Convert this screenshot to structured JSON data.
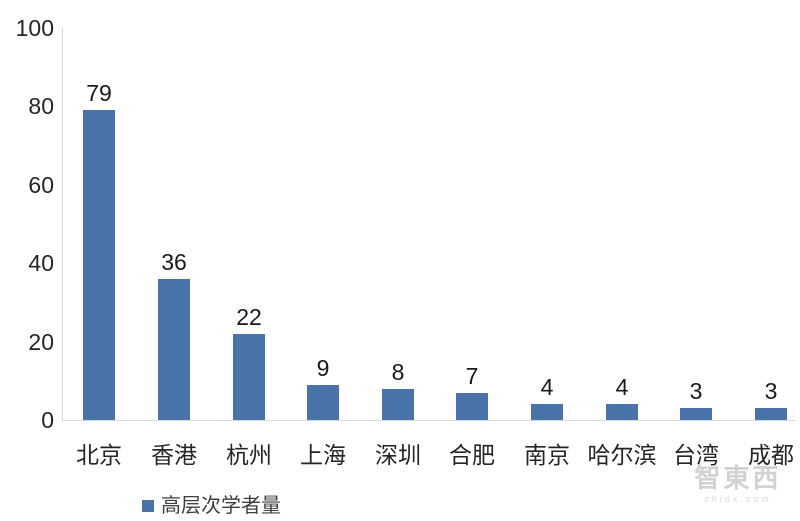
{
  "chart_data": {
    "type": "bar",
    "categories": [
      "北京",
      "香港",
      "杭州",
      "上海",
      "深圳",
      "合肥",
      "南京",
      "哈尔滨",
      "台湾",
      "成都"
    ],
    "values": [
      79,
      36,
      22,
      9,
      8,
      7,
      4,
      4,
      3,
      3
    ],
    "series_name": "高层次学者量",
    "title": "",
    "xlabel": "",
    "ylabel": "",
    "ylim": [
      0,
      100
    ],
    "yticks": [
      0,
      20,
      40,
      60,
      80,
      100
    ],
    "grid": false,
    "legend_position": "bottom-left",
    "bar_color": "#4a73ac",
    "axis_line_color": "#d9d9d9",
    "tick_label_color": "#262626",
    "data_label_color": "#1a1a1a"
  },
  "legend": {
    "label": "高层次学者量",
    "swatch_color": "#4a73ac"
  },
  "watermark": {
    "logo_text": "智東西",
    "domain": "zhidx.com"
  }
}
